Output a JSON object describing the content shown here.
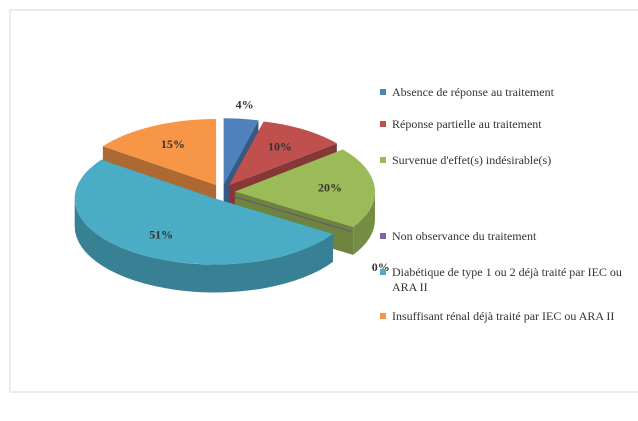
{
  "chart_data": {
    "type": "pie",
    "categories": [
      "Absence de réponse au traitement",
      "Réponse partielle au traitement",
      "Survenue d'effet(s) indésirable(s)",
      "Non observance du traitement",
      "Diabétique de type 1 ou 2 déjà traité par IEC ou ARA II",
      "Insuffisant rénal déjà traité par IEC ou ARA II"
    ],
    "values": [
      4,
      10,
      20,
      0,
      51,
      15
    ],
    "value_labels": [
      "4%",
      "10%",
      "20%",
      "0%",
      "51%",
      "15%"
    ],
    "colors": [
      "#4f81bd",
      "#c0504d",
      "#9bbb59",
      "#8064a2",
      "#4bacc6",
      "#f79646"
    ],
    "legend": "right"
  }
}
